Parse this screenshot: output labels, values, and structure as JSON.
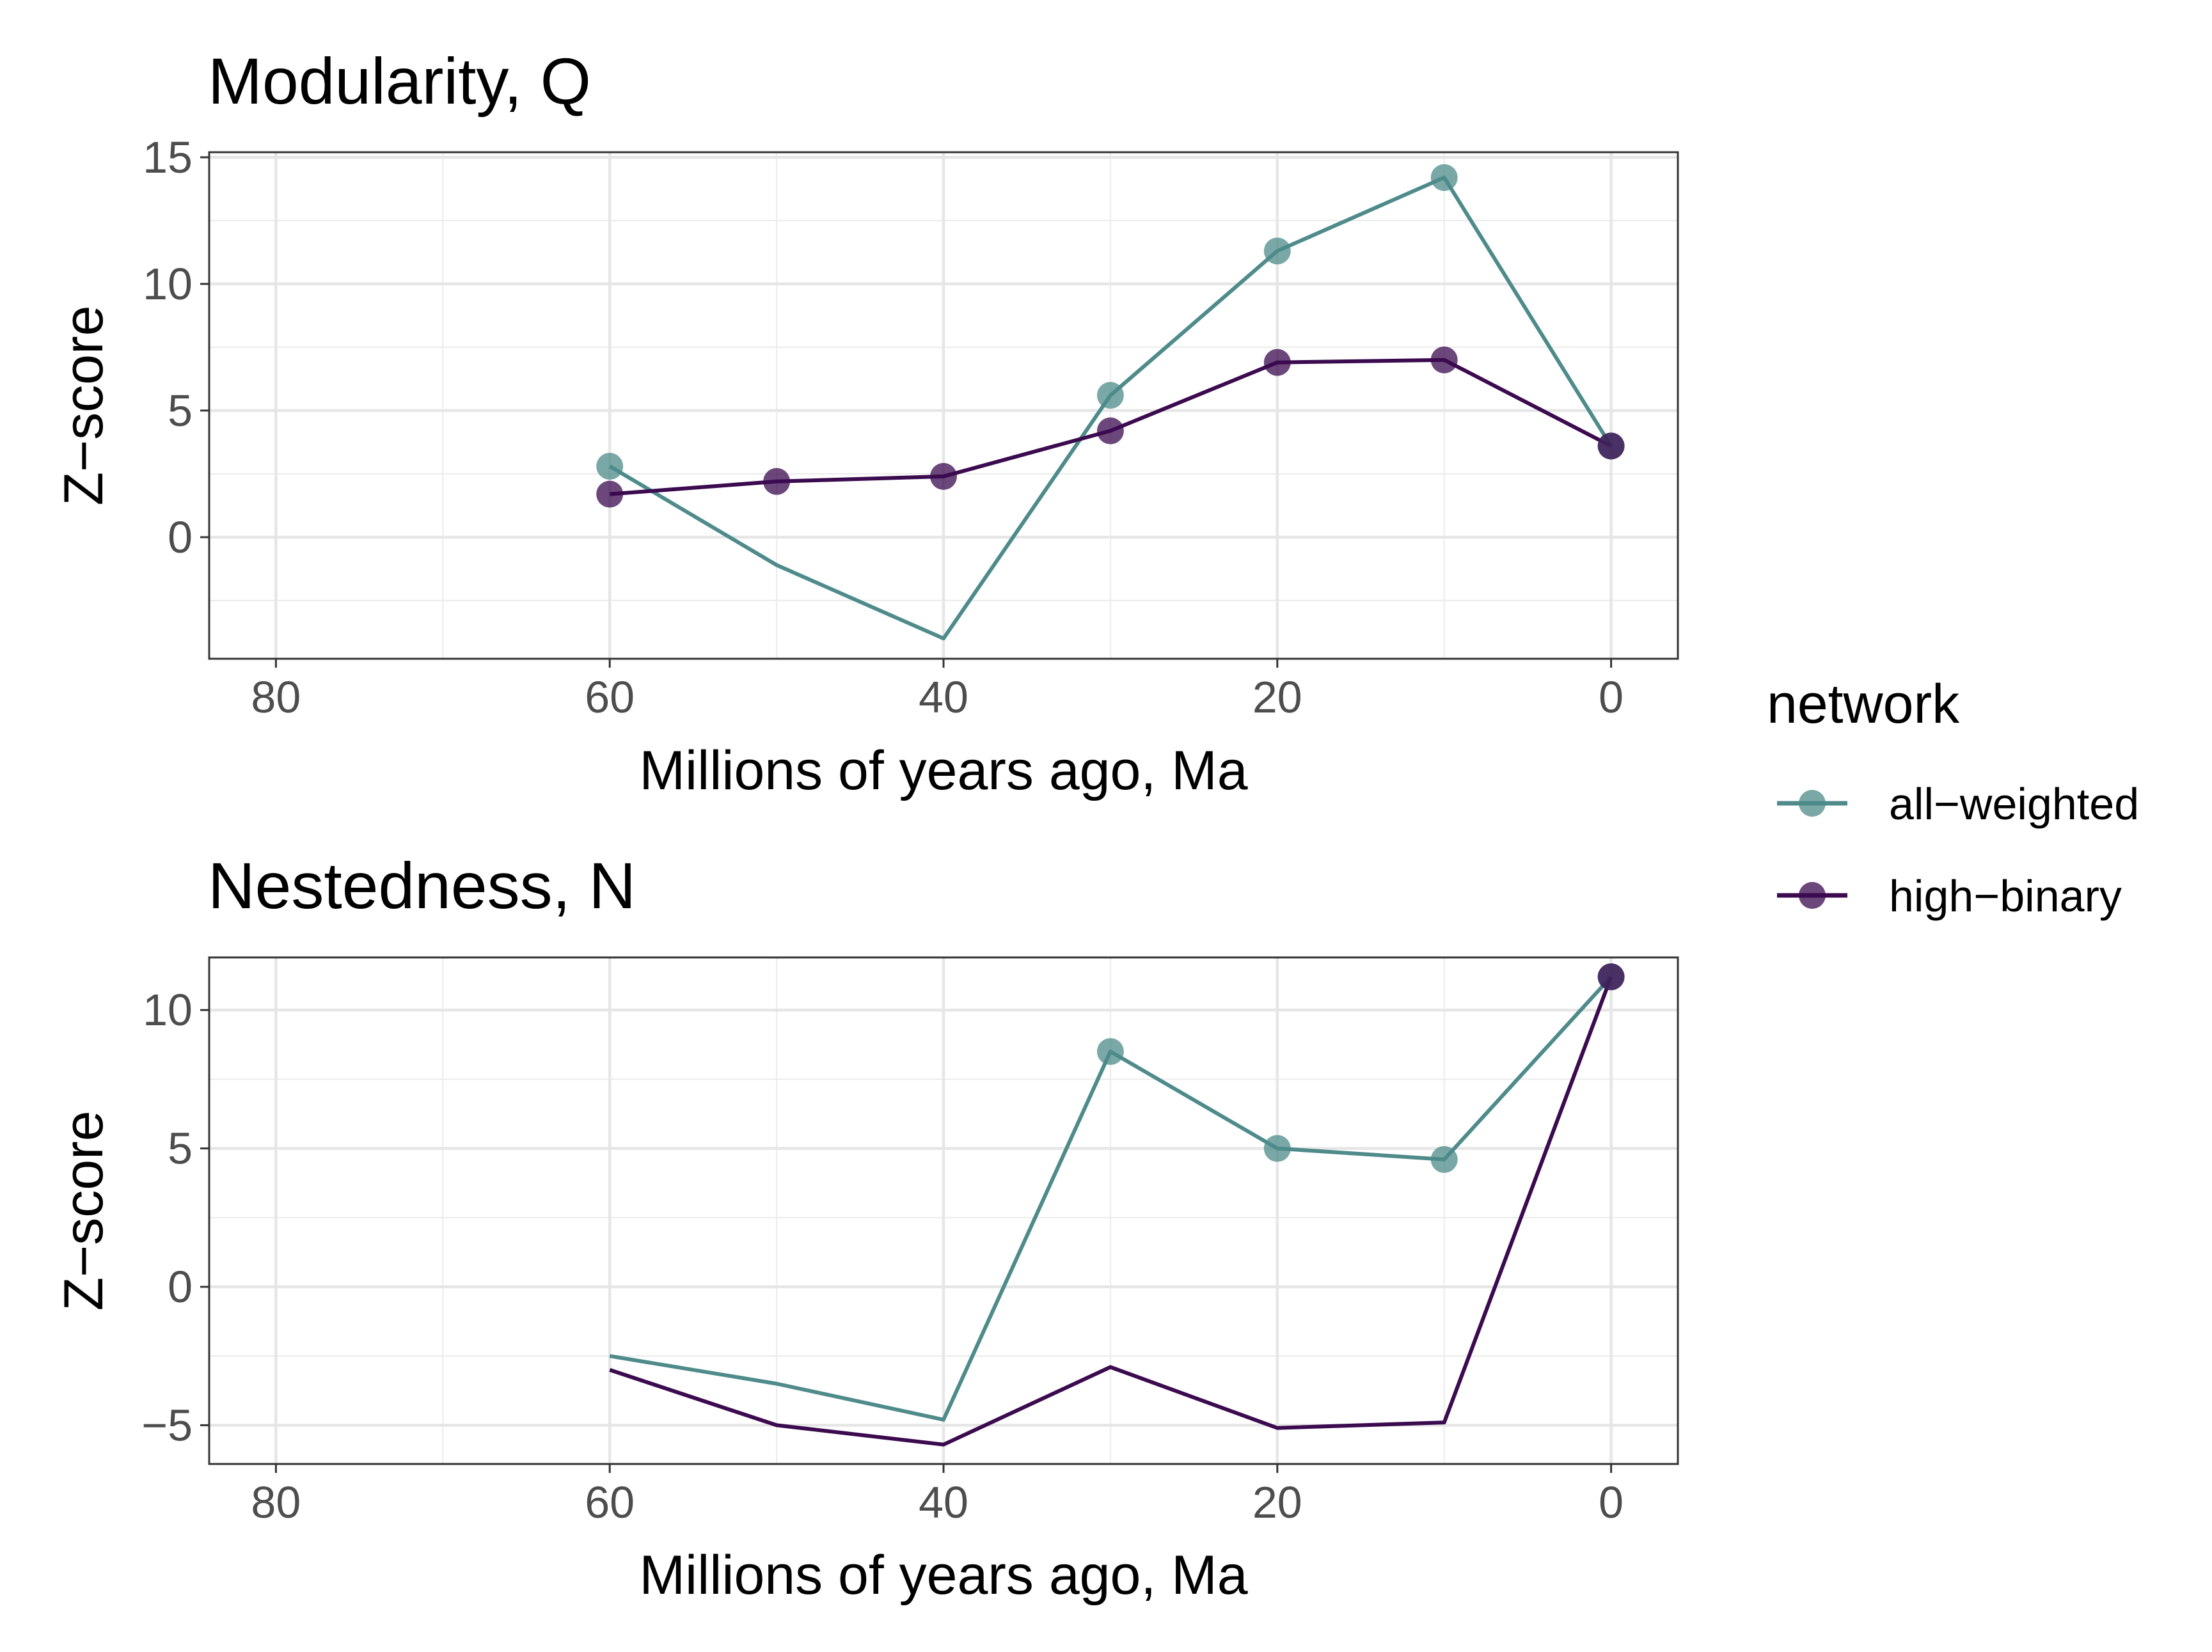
{
  "legend": {
    "title": "network",
    "entries": [
      {
        "label": "all−weighted",
        "color": "#4e8b8a"
      },
      {
        "label": "high−binary",
        "color": "#3b0a4f"
      }
    ]
  },
  "chart_data": [
    {
      "type": "line",
      "title": "Modularity, Q",
      "xlabel": "Millions of years ago, Ma",
      "ylabel": "Z−score",
      "x_reversed": true,
      "xlim": [
        84,
        -4
      ],
      "ylim": [
        -4.8,
        15.2
      ],
      "x_ticks": [
        80,
        60,
        40,
        20,
        0
      ],
      "y_ticks": [
        0,
        5,
        10,
        15
      ],
      "x_tick_labels": [
        "80",
        "60",
        "40",
        "20",
        "0"
      ],
      "y_tick_labels": [
        "0",
        "5",
        "10",
        "15"
      ],
      "grid": true,
      "legend_position": "right",
      "series": [
        {
          "name": "all−weighted",
          "color": "#4e8b8a",
          "x": [
            60,
            50,
            40,
            30,
            20,
            10,
            0
          ],
          "y": [
            2.8,
            -1.1,
            -4.0,
            5.6,
            11.3,
            14.2,
            3.6
          ],
          "markers": [
            true,
            false,
            false,
            true,
            true,
            true,
            true
          ]
        },
        {
          "name": "high−binary",
          "color": "#3b0a4f",
          "x": [
            60,
            50,
            40,
            30,
            20,
            10,
            0
          ],
          "y": [
            1.7,
            2.2,
            2.4,
            4.2,
            6.9,
            7.0,
            3.6
          ],
          "markers": [
            true,
            true,
            true,
            true,
            true,
            true,
            true
          ]
        }
      ]
    },
    {
      "type": "line",
      "title": "Nestedness, N",
      "xlabel": "Millions of years ago, Ma",
      "ylabel": "Z−score",
      "x_reversed": true,
      "xlim": [
        84,
        -4
      ],
      "ylim": [
        -6.4,
        11.9
      ],
      "x_ticks": [
        80,
        60,
        40,
        20,
        0
      ],
      "y_ticks": [
        -5,
        0,
        5,
        10
      ],
      "x_tick_labels": [
        "80",
        "60",
        "40",
        "20",
        "0"
      ],
      "y_tick_labels": [
        "−5",
        "0",
        "5",
        "10"
      ],
      "grid": true,
      "legend_position": "right",
      "series": [
        {
          "name": "all−weighted",
          "color": "#4e8b8a",
          "x": [
            60,
            50,
            40,
            30,
            20,
            10,
            0
          ],
          "y": [
            -2.5,
            -3.5,
            -4.8,
            8.5,
            5.0,
            4.6,
            11.2
          ],
          "markers": [
            false,
            false,
            false,
            true,
            true,
            true,
            true
          ]
        },
        {
          "name": "high−binary",
          "color": "#3b0a4f",
          "x": [
            60,
            50,
            40,
            30,
            20,
            10,
            0
          ],
          "y": [
            -3.0,
            -5.0,
            -5.7,
            -2.9,
            -5.1,
            -4.9,
            11.2
          ],
          "markers": [
            false,
            false,
            false,
            false,
            false,
            false,
            true
          ]
        }
      ]
    }
  ]
}
